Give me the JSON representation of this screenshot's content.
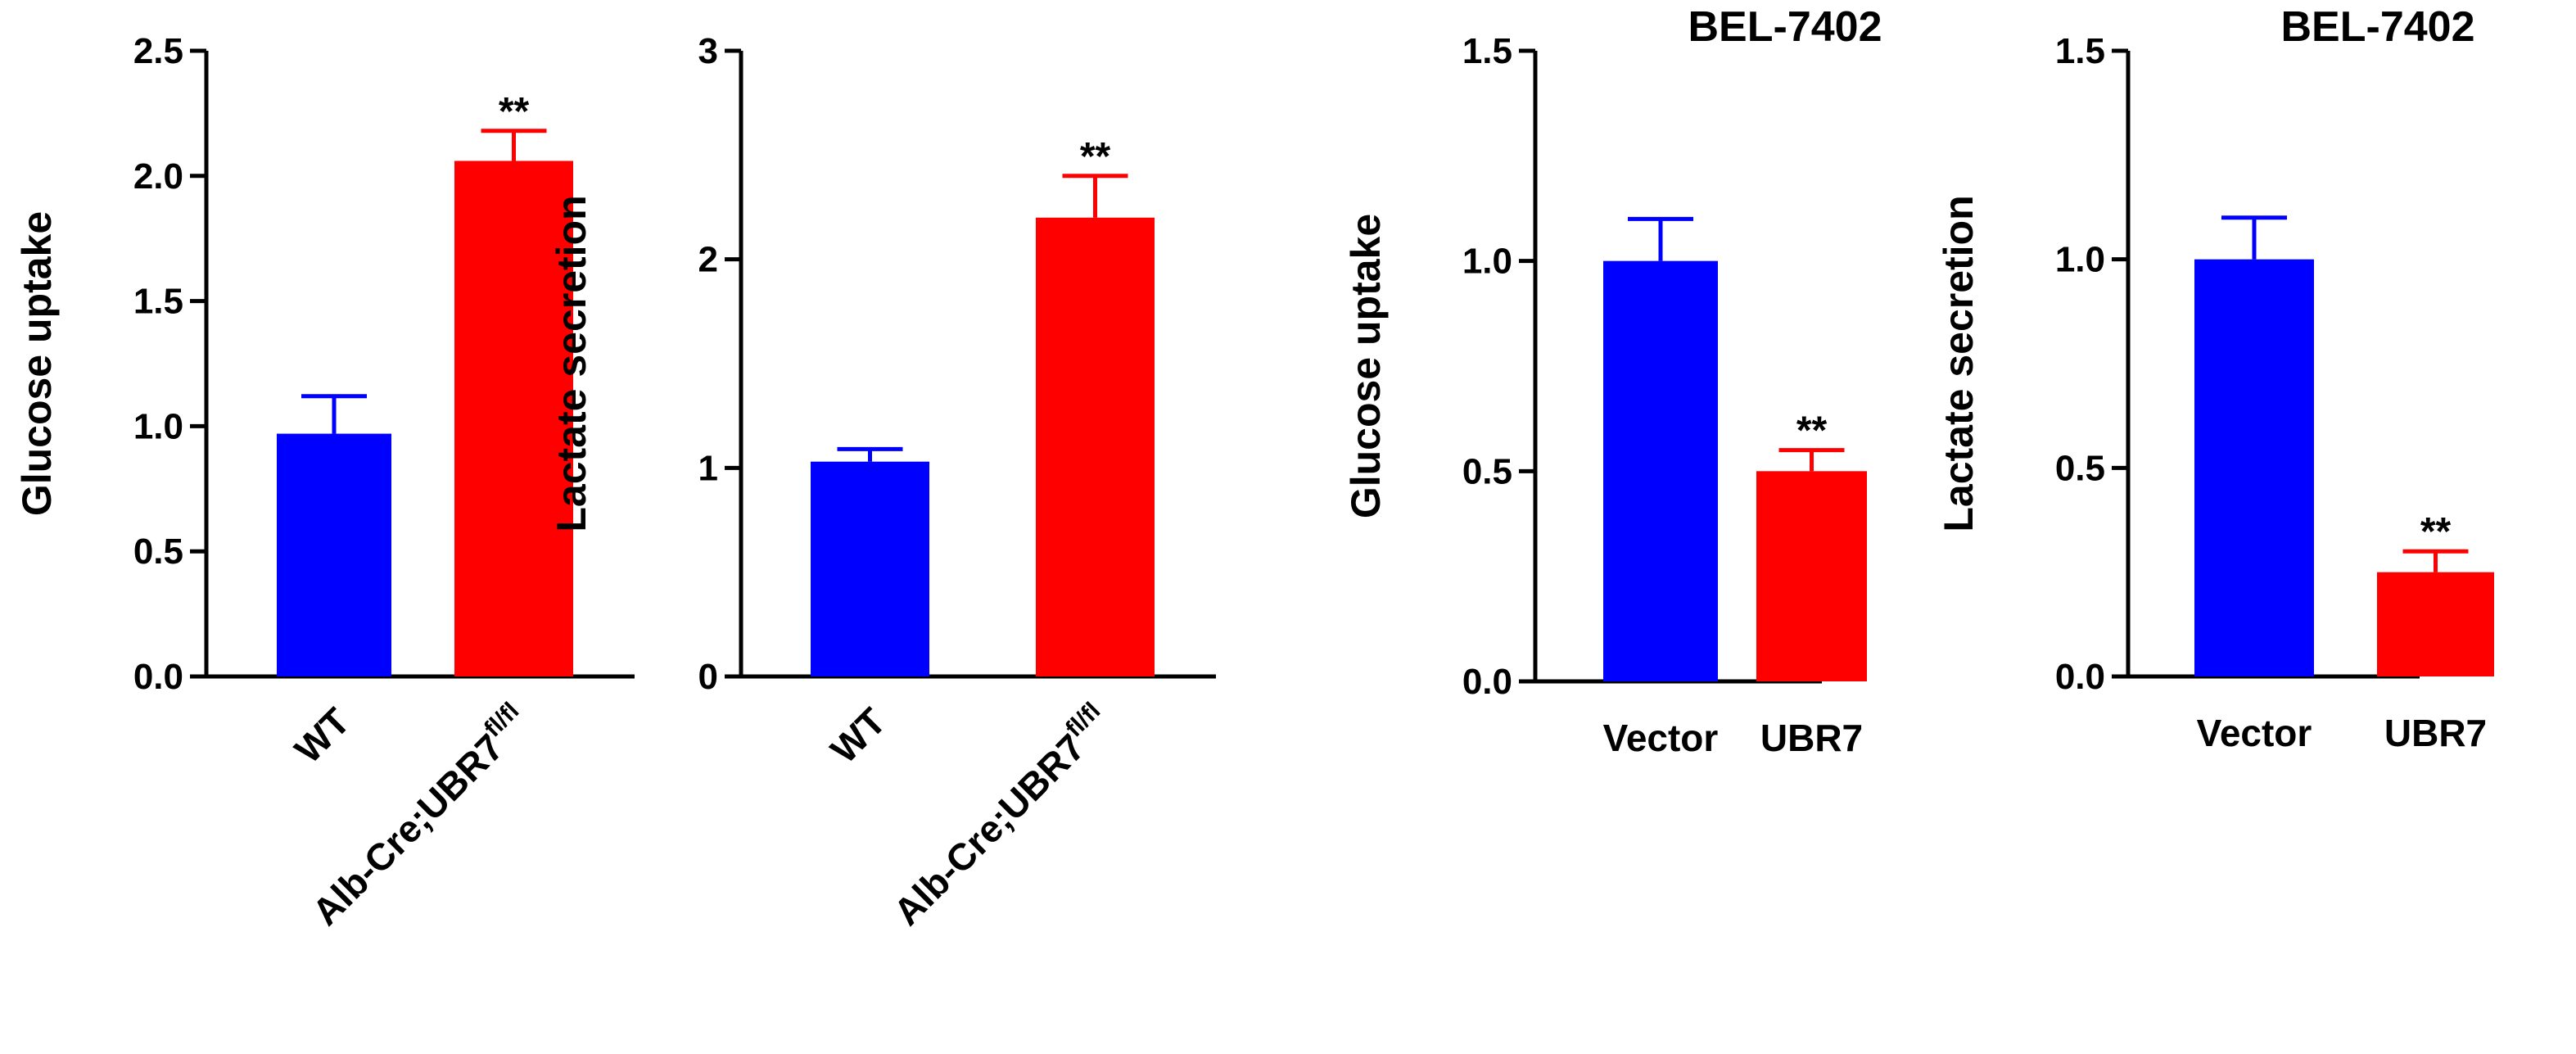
{
  "colors": {
    "blue": "#0000ff",
    "red": "#ff0000",
    "axis": "#000000"
  },
  "chart_data": [
    {
      "type": "bar",
      "title": "",
      "xlabel": "",
      "ylabel": "Glucose uptake",
      "ylim": [
        0,
        2.5
      ],
      "yticks": [
        "0.0",
        "0.5",
        "1.0",
        "1.5",
        "2.0",
        "2.5"
      ],
      "categories": [
        {
          "base": "WT",
          "sup": ""
        },
        {
          "base": "Alb-Cre;UBR7",
          "sup": "fl/fl"
        }
      ],
      "values": [
        0.97,
        2.06
      ],
      "errors": [
        0.15,
        0.12
      ],
      "colors": [
        "#0000ff",
        "#ff0000"
      ],
      "significance": [
        "",
        "**"
      ],
      "rotated_labels": true,
      "grid": false
    },
    {
      "type": "bar",
      "title": "",
      "xlabel": "",
      "ylabel": "Lactate secretion",
      "ylim": [
        0,
        3
      ],
      "yticks": [
        "0",
        "1",
        "2",
        "3"
      ],
      "categories": [
        {
          "base": "WT",
          "sup": ""
        },
        {
          "base": "Alb-Cre;UBR7",
          "sup": "fl/fl"
        }
      ],
      "values": [
        1.03,
        2.2
      ],
      "errors": [
        0.06,
        0.2
      ],
      "colors": [
        "#0000ff",
        "#ff0000"
      ],
      "significance": [
        "",
        "**"
      ],
      "rotated_labels": true,
      "grid": false
    },
    {
      "type": "bar",
      "title": "BEL-7402",
      "xlabel": "",
      "ylabel": "Glucose uptake",
      "ylim": [
        0,
        1.5
      ],
      "yticks": [
        "0.0",
        "0.5",
        "1.0",
        "1.5"
      ],
      "categories": [
        {
          "base": "Vector",
          "sup": ""
        },
        {
          "base": "UBR7",
          "sup": ""
        }
      ],
      "values": [
        1.0,
        0.5
      ],
      "errors": [
        0.1,
        0.05
      ],
      "colors": [
        "#0000ff",
        "#ff0000"
      ],
      "significance": [
        "",
        "**"
      ],
      "rotated_labels": false,
      "grid": false
    },
    {
      "type": "bar",
      "title": "BEL-7402",
      "xlabel": "",
      "ylabel": "Lactate secretion",
      "ylim": [
        0,
        1.5
      ],
      "yticks": [
        "0.0",
        "0.5",
        "1.0",
        "1.5"
      ],
      "categories": [
        {
          "base": "Vector",
          "sup": ""
        },
        {
          "base": "UBR7",
          "sup": ""
        }
      ],
      "values": [
        1.0,
        0.25
      ],
      "errors": [
        0.1,
        0.05
      ],
      "colors": [
        "#0000ff",
        "#ff0000"
      ],
      "significance": [
        "",
        "**"
      ],
      "rotated_labels": false,
      "grid": false
    }
  ]
}
